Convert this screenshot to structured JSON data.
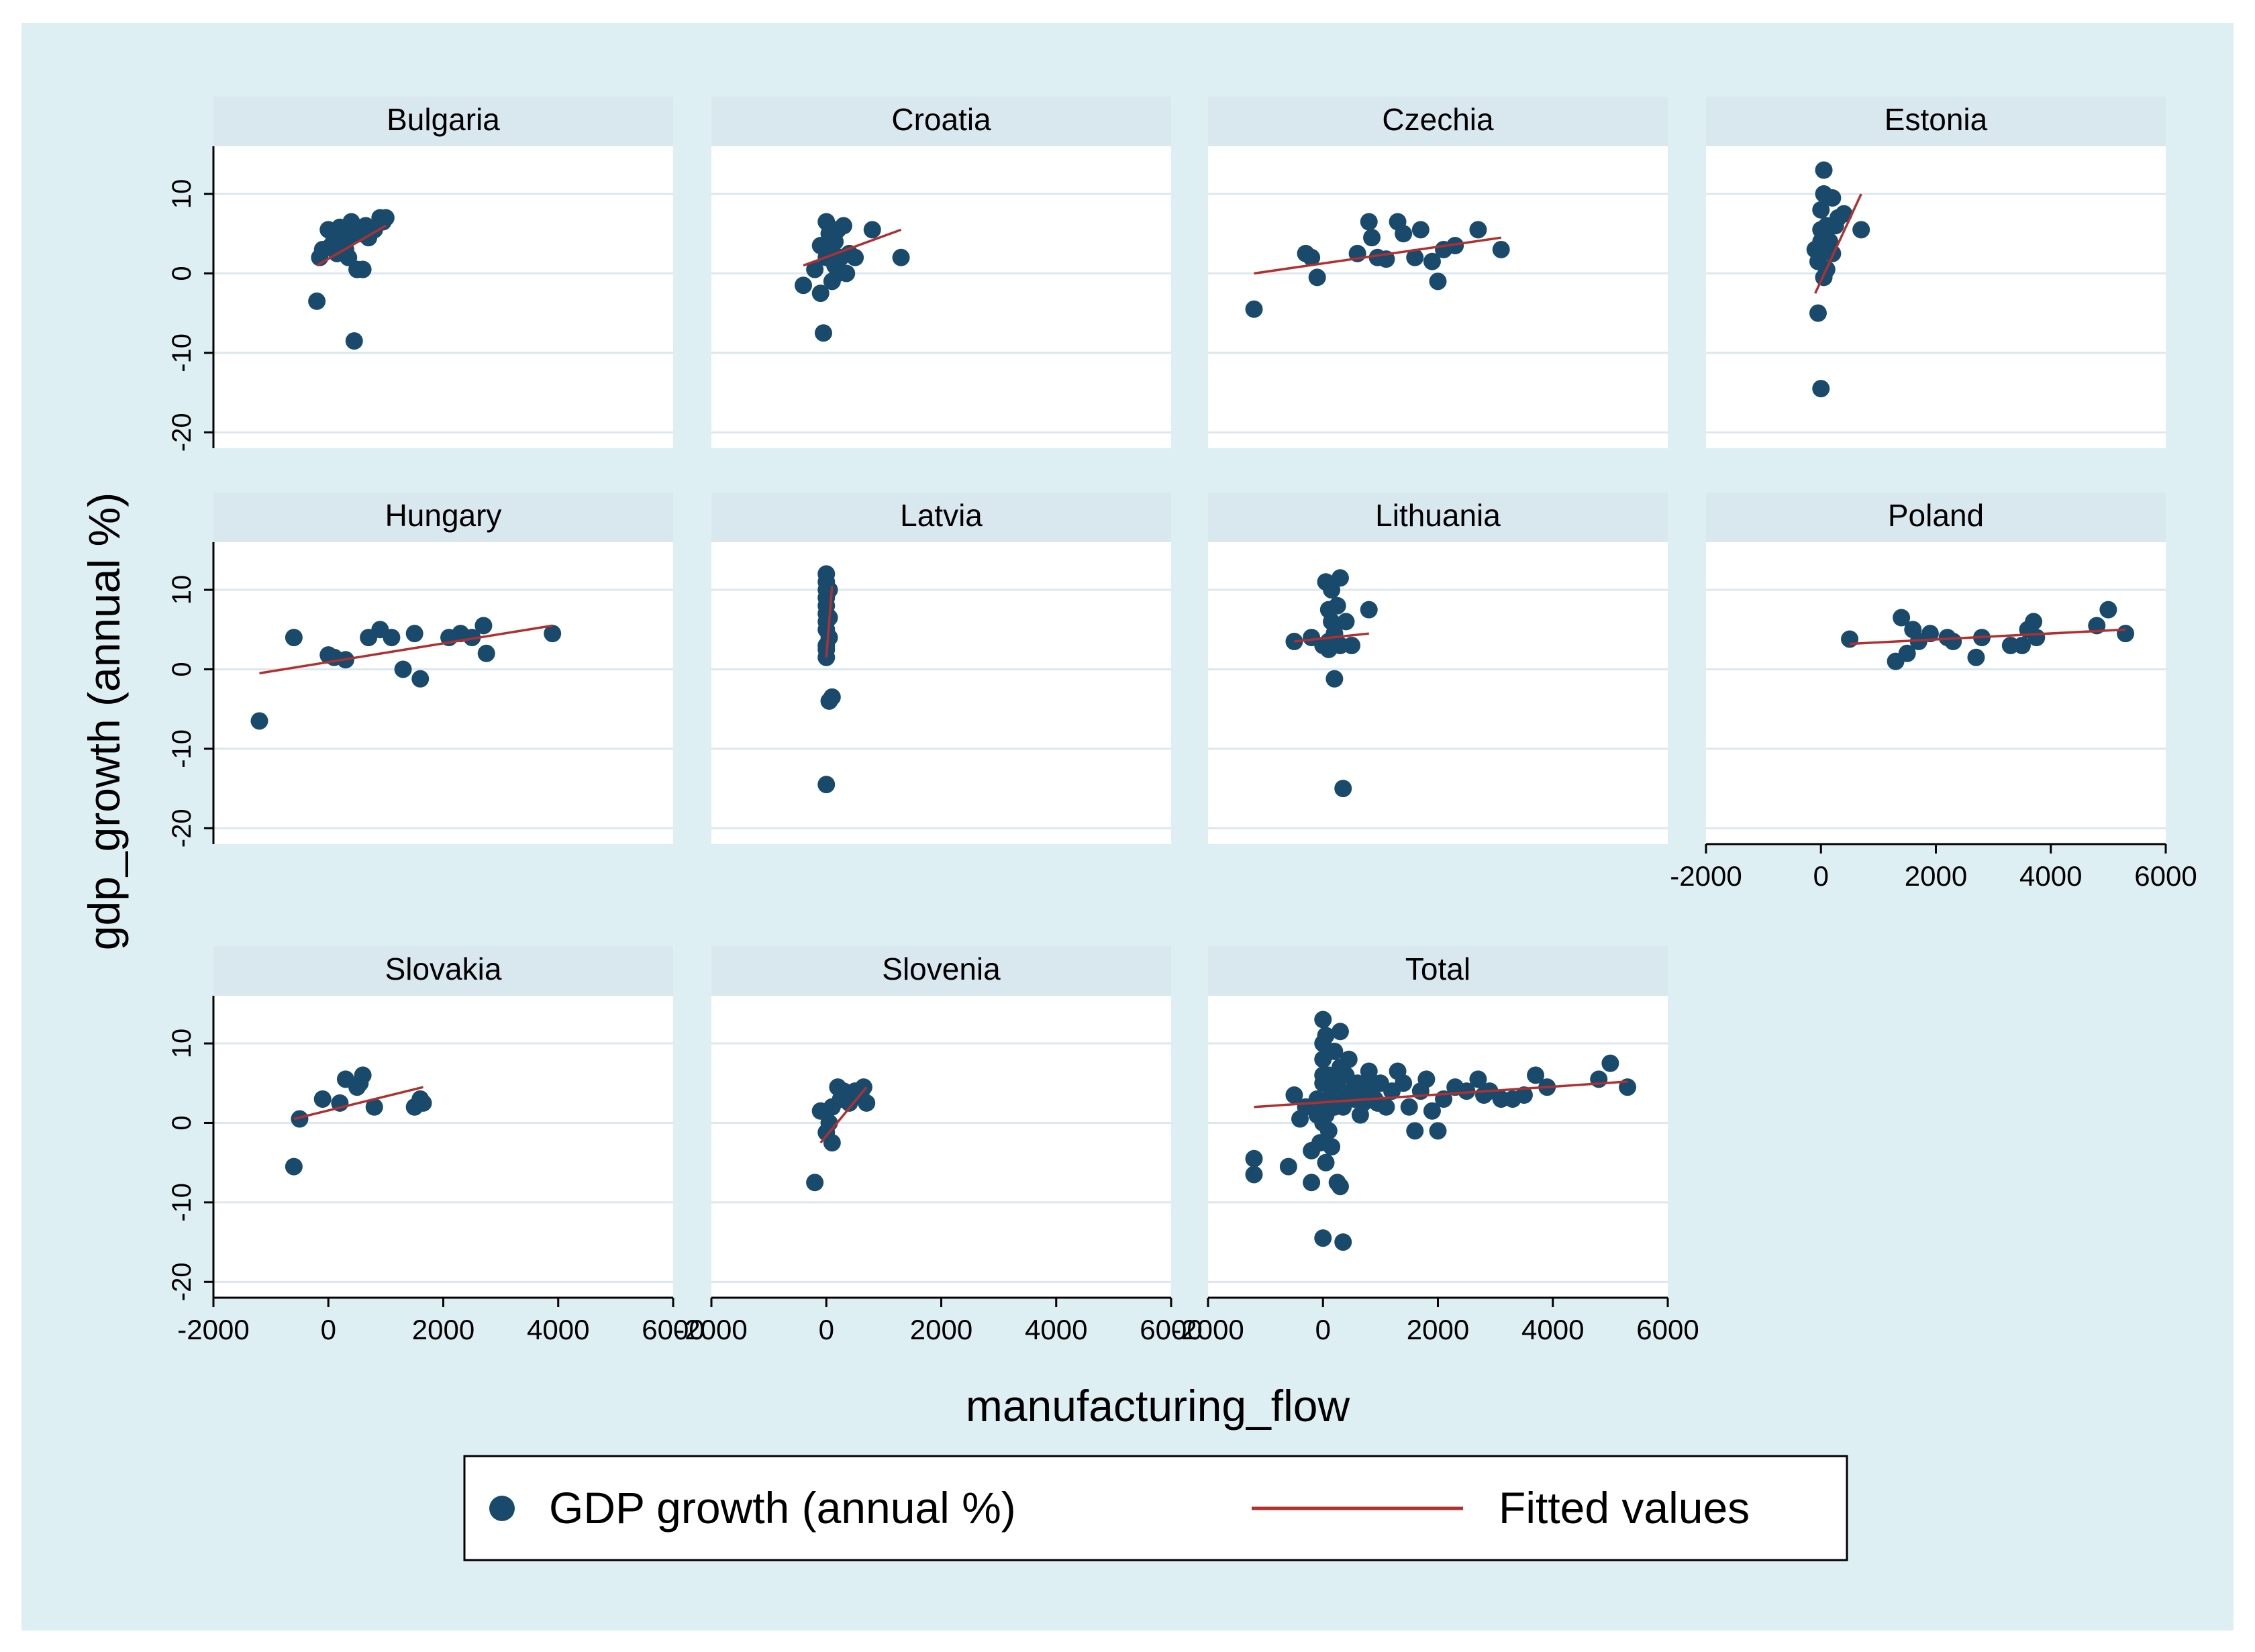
{
  "figure": {
    "ylabel": "gdp_growth (annual %)",
    "xlabel": "manufacturing_flow",
    "legend": {
      "items": [
        {
          "label": "GDP growth (annual %)",
          "kind": "marker"
        },
        {
          "label": "Fitted values",
          "kind": "line"
        }
      ]
    }
  },
  "colors": {
    "outer_bg": "#deeff3",
    "panel_bg": "#ffffff",
    "strip_bg": "#d9e8ee",
    "marker": "#1a4a6b",
    "fit_line": "#b03030",
    "grid": "#dce8ee",
    "axis": "#000000"
  },
  "chart_data": {
    "type": "scatter",
    "xlabel": "manufacturing_flow",
    "ylabel": "gdp_growth (annual %)",
    "xlim": [
      -2000,
      6000
    ],
    "ylim": [
      -22,
      16
    ],
    "xticks": [
      -2000,
      0,
      2000,
      4000,
      6000
    ],
    "yticks": [
      -20,
      -10,
      0,
      10
    ],
    "series_names": [
      "GDP growth (annual %)",
      "Fitted values"
    ],
    "panels": [
      {
        "title": "Bulgaria",
        "points": [
          [
            -200,
            -3.5
          ],
          [
            -150,
            2
          ],
          [
            -100,
            3
          ],
          [
            0,
            5.5
          ],
          [
            100,
            4.5
          ],
          [
            150,
            2.5
          ],
          [
            200,
            5.8
          ],
          [
            250,
            3.5
          ],
          [
            300,
            4
          ],
          [
            350,
            2
          ],
          [
            400,
            6.5
          ],
          [
            450,
            5
          ],
          [
            500,
            0.5
          ],
          [
            550,
            5
          ],
          [
            600,
            0.5
          ],
          [
            650,
            6
          ],
          [
            700,
            4.5
          ],
          [
            800,
            5.5
          ],
          [
            900,
            7
          ],
          [
            950,
            6.5
          ],
          [
            1000,
            7
          ],
          [
            450,
            -8.5
          ],
          [
            50,
            3.5
          ],
          [
            300,
            3
          ]
        ],
        "fit": [
          [
            -200,
            1
          ],
          [
            1000,
            6
          ]
        ]
      },
      {
        "title": "Croatia",
        "points": [
          [
            -400,
            -1.5
          ],
          [
            -200,
            0.5
          ],
          [
            -100,
            -2.5
          ],
          [
            -50,
            -7.5
          ],
          [
            0,
            2
          ],
          [
            0,
            6.5
          ],
          [
            50,
            5
          ],
          [
            100,
            3.5
          ],
          [
            100,
            -1
          ],
          [
            150,
            4
          ],
          [
            200,
            0
          ],
          [
            200,
            5.5
          ],
          [
            250,
            2
          ],
          [
            300,
            6
          ],
          [
            350,
            0
          ],
          [
            400,
            2.5
          ],
          [
            500,
            2
          ],
          [
            800,
            5.5
          ],
          [
            1300,
            2
          ],
          [
            0,
            3
          ],
          [
            150,
            1
          ],
          [
            -100,
            3.5
          ]
        ],
        "fit": [
          [
            -400,
            1
          ],
          [
            1300,
            5.5
          ]
        ]
      },
      {
        "title": "Czechia",
        "points": [
          [
            -1200,
            -4.5
          ],
          [
            -300,
            2.5
          ],
          [
            -200,
            2
          ],
          [
            -100,
            -0.5
          ],
          [
            600,
            2.5
          ],
          [
            800,
            6.5
          ],
          [
            850,
            4.5
          ],
          [
            950,
            2
          ],
          [
            1100,
            1.8
          ],
          [
            1300,
            6.5
          ],
          [
            1400,
            5
          ],
          [
            1600,
            2
          ],
          [
            1700,
            5.5
          ],
          [
            1900,
            1.5
          ],
          [
            2000,
            -1
          ],
          [
            2100,
            3
          ],
          [
            2300,
            3.5
          ],
          [
            2700,
            5.5
          ],
          [
            3100,
            3
          ]
        ],
        "fit": [
          [
            -1200,
            0
          ],
          [
            3100,
            4.5
          ]
        ]
      },
      {
        "title": "Estonia",
        "points": [
          [
            -100,
            3
          ],
          [
            -50,
            -5
          ],
          [
            -50,
            1.5
          ],
          [
            0,
            -14.5
          ],
          [
            0,
            5.5
          ],
          [
            0,
            8
          ],
          [
            0,
            3
          ],
          [
            50,
            -0.5
          ],
          [
            50,
            10
          ],
          [
            50,
            13
          ],
          [
            100,
            6
          ],
          [
            150,
            4
          ],
          [
            200,
            2.5
          ],
          [
            200,
            9.5
          ],
          [
            250,
            6
          ],
          [
            300,
            7
          ],
          [
            400,
            7.5
          ],
          [
            700,
            5.5
          ],
          [
            100,
            0.5
          ],
          [
            0,
            4
          ]
        ],
        "fit": [
          [
            -100,
            -2.5
          ],
          [
            700,
            10
          ]
        ]
      },
      {
        "title": "Hungary",
        "points": [
          [
            -1200,
            -6.5
          ],
          [
            -600,
            4
          ],
          [
            0,
            1.8
          ],
          [
            100,
            1.5
          ],
          [
            300,
            1.2
          ],
          [
            700,
            4
          ],
          [
            900,
            5
          ],
          [
            1100,
            4
          ],
          [
            1300,
            0
          ],
          [
            1500,
            4.5
          ],
          [
            1600,
            -1.2
          ],
          [
            2100,
            4
          ],
          [
            2300,
            4.5
          ],
          [
            2500,
            4
          ],
          [
            2700,
            5.5
          ],
          [
            2750,
            2
          ],
          [
            3900,
            4.5
          ]
        ],
        "fit": [
          [
            -1200,
            -0.5
          ],
          [
            3900,
            5.5
          ]
        ]
      },
      {
        "title": "Latvia",
        "points": [
          [
            0,
            12
          ],
          [
            0,
            11
          ],
          [
            0,
            10
          ],
          [
            50,
            10
          ],
          [
            0,
            9
          ],
          [
            0,
            8
          ],
          [
            0,
            7
          ],
          [
            50,
            6.5
          ],
          [
            0,
            6
          ],
          [
            0,
            5
          ],
          [
            50,
            4
          ],
          [
            0,
            3
          ],
          [
            0,
            1.5
          ],
          [
            50,
            -4
          ],
          [
            100,
            -3.5
          ],
          [
            0,
            -14.5
          ],
          [
            0,
            2.5
          ]
        ],
        "fit": [
          [
            0,
            1.5
          ],
          [
            100,
            10.5
          ]
        ]
      },
      {
        "title": "Lithuania",
        "points": [
          [
            -500,
            3.5
          ],
          [
            -200,
            4
          ],
          [
            0,
            3
          ],
          [
            50,
            11
          ],
          [
            100,
            7.5
          ],
          [
            100,
            2.5
          ],
          [
            150,
            6
          ],
          [
            150,
            10
          ],
          [
            200,
            -1.2
          ],
          [
            200,
            4.5
          ],
          [
            250,
            8
          ],
          [
            300,
            11.5
          ],
          [
            300,
            3
          ],
          [
            350,
            -15
          ],
          [
            400,
            6
          ],
          [
            500,
            3
          ],
          [
            800,
            7.5
          ],
          [
            200,
            4.5
          ],
          [
            100,
            3.5
          ]
        ],
        "fit": [
          [
            -500,
            3.5
          ],
          [
            800,
            4.5
          ]
        ]
      },
      {
        "title": "Poland",
        "points": [
          [
            500,
            3.8
          ],
          [
            1300,
            1
          ],
          [
            1400,
            6.5
          ],
          [
            1500,
            2
          ],
          [
            1600,
            5
          ],
          [
            1700,
            3.5
          ],
          [
            1900,
            4.5
          ],
          [
            2200,
            4
          ],
          [
            2300,
            3.5
          ],
          [
            2700,
            1.5
          ],
          [
            2800,
            4
          ],
          [
            3300,
            3
          ],
          [
            3500,
            3
          ],
          [
            3600,
            5
          ],
          [
            3700,
            6
          ],
          [
            3750,
            4
          ],
          [
            4800,
            5.5
          ],
          [
            5000,
            7.5
          ],
          [
            5300,
            4.5
          ]
        ],
        "fit": [
          [
            500,
            3.2
          ],
          [
            5300,
            5
          ]
        ]
      },
      {
        "title": "Slovakia",
        "points": [
          [
            -600,
            -5.5
          ],
          [
            -500,
            0.5
          ],
          [
            -100,
            3
          ],
          [
            200,
            2.5
          ],
          [
            300,
            5.5
          ],
          [
            500,
            4.5
          ],
          [
            550,
            5
          ],
          [
            600,
            6
          ],
          [
            800,
            2
          ],
          [
            1500,
            2
          ],
          [
            1600,
            3
          ],
          [
            1650,
            2.5
          ]
        ],
        "fit": [
          [
            -600,
            0.5
          ],
          [
            1650,
            4.5
          ]
        ]
      },
      {
        "title": "Slovenia",
        "points": [
          [
            -200,
            -7.5
          ],
          [
            -100,
            1.5
          ],
          [
            0,
            -1.2
          ],
          [
            50,
            0
          ],
          [
            100,
            -2.5
          ],
          [
            100,
            2
          ],
          [
            200,
            4.5
          ],
          [
            250,
            3
          ],
          [
            300,
            4
          ],
          [
            400,
            2.5
          ],
          [
            500,
            4
          ],
          [
            600,
            3.5
          ],
          [
            650,
            4.5
          ],
          [
            700,
            2.5
          ]
        ],
        "fit": [
          [
            -100,
            -2.5
          ],
          [
            700,
            4.5
          ]
        ]
      },
      {
        "title": "Total",
        "points": [
          [
            -1200,
            -4.5
          ],
          [
            -1200,
            -6.5
          ],
          [
            -600,
            -5.5
          ],
          [
            -500,
            3.5
          ],
          [
            -400,
            0.5
          ],
          [
            -300,
            2
          ],
          [
            -200,
            -3.5
          ],
          [
            -200,
            -7.5
          ],
          [
            -100,
            3
          ],
          [
            -50,
            -2.5
          ],
          [
            0,
            -14.5
          ],
          [
            0,
            0
          ],
          [
            0,
            2
          ],
          [
            0,
            5
          ],
          [
            0,
            8
          ],
          [
            0,
            13
          ],
          [
            0,
            10
          ],
          [
            50,
            11
          ],
          [
            50,
            -5
          ],
          [
            100,
            6
          ],
          [
            100,
            -1
          ],
          [
            150,
            4
          ],
          [
            200,
            9
          ],
          [
            200,
            2
          ],
          [
            250,
            -7.5
          ],
          [
            300,
            11.5
          ],
          [
            300,
            -8
          ],
          [
            350,
            -15
          ],
          [
            400,
            6
          ],
          [
            500,
            4
          ],
          [
            600,
            5
          ],
          [
            700,
            2.5
          ],
          [
            800,
            6.5
          ],
          [
            900,
            3
          ],
          [
            1000,
            5
          ],
          [
            1100,
            2
          ],
          [
            1200,
            4
          ],
          [
            1300,
            6.5
          ],
          [
            1400,
            5
          ],
          [
            1500,
            2
          ],
          [
            1600,
            -1
          ],
          [
            1700,
            4
          ],
          [
            1800,
            5.5
          ],
          [
            1900,
            1.5
          ],
          [
            2000,
            -1
          ],
          [
            2100,
            3
          ],
          [
            2300,
            4.5
          ],
          [
            2500,
            4
          ],
          [
            2700,
            5.5
          ],
          [
            2800,
            3.5
          ],
          [
            2900,
            4
          ],
          [
            3100,
            3
          ],
          [
            3300,
            3
          ],
          [
            3500,
            3.5
          ],
          [
            3700,
            6
          ],
          [
            3900,
            4.5
          ],
          [
            4800,
            5.5
          ],
          [
            5000,
            7.5
          ],
          [
            5300,
            4.5
          ],
          [
            100,
            3
          ],
          [
            200,
            4
          ],
          [
            0,
            6
          ],
          [
            -100,
            1
          ],
          [
            300,
            7
          ],
          [
            400,
            3
          ],
          [
            150,
            -3
          ],
          [
            50,
            1
          ],
          [
            250,
            5
          ],
          [
            350,
            2
          ],
          [
            450,
            8
          ],
          [
            550,
            3
          ],
          [
            650,
            1
          ],
          [
            750,
            4.5
          ],
          [
            850,
            5
          ],
          [
            950,
            2.5
          ]
        ],
        "fit": [
          [
            -1200,
            2
          ],
          [
            5300,
            5.2
          ]
        ]
      }
    ]
  }
}
